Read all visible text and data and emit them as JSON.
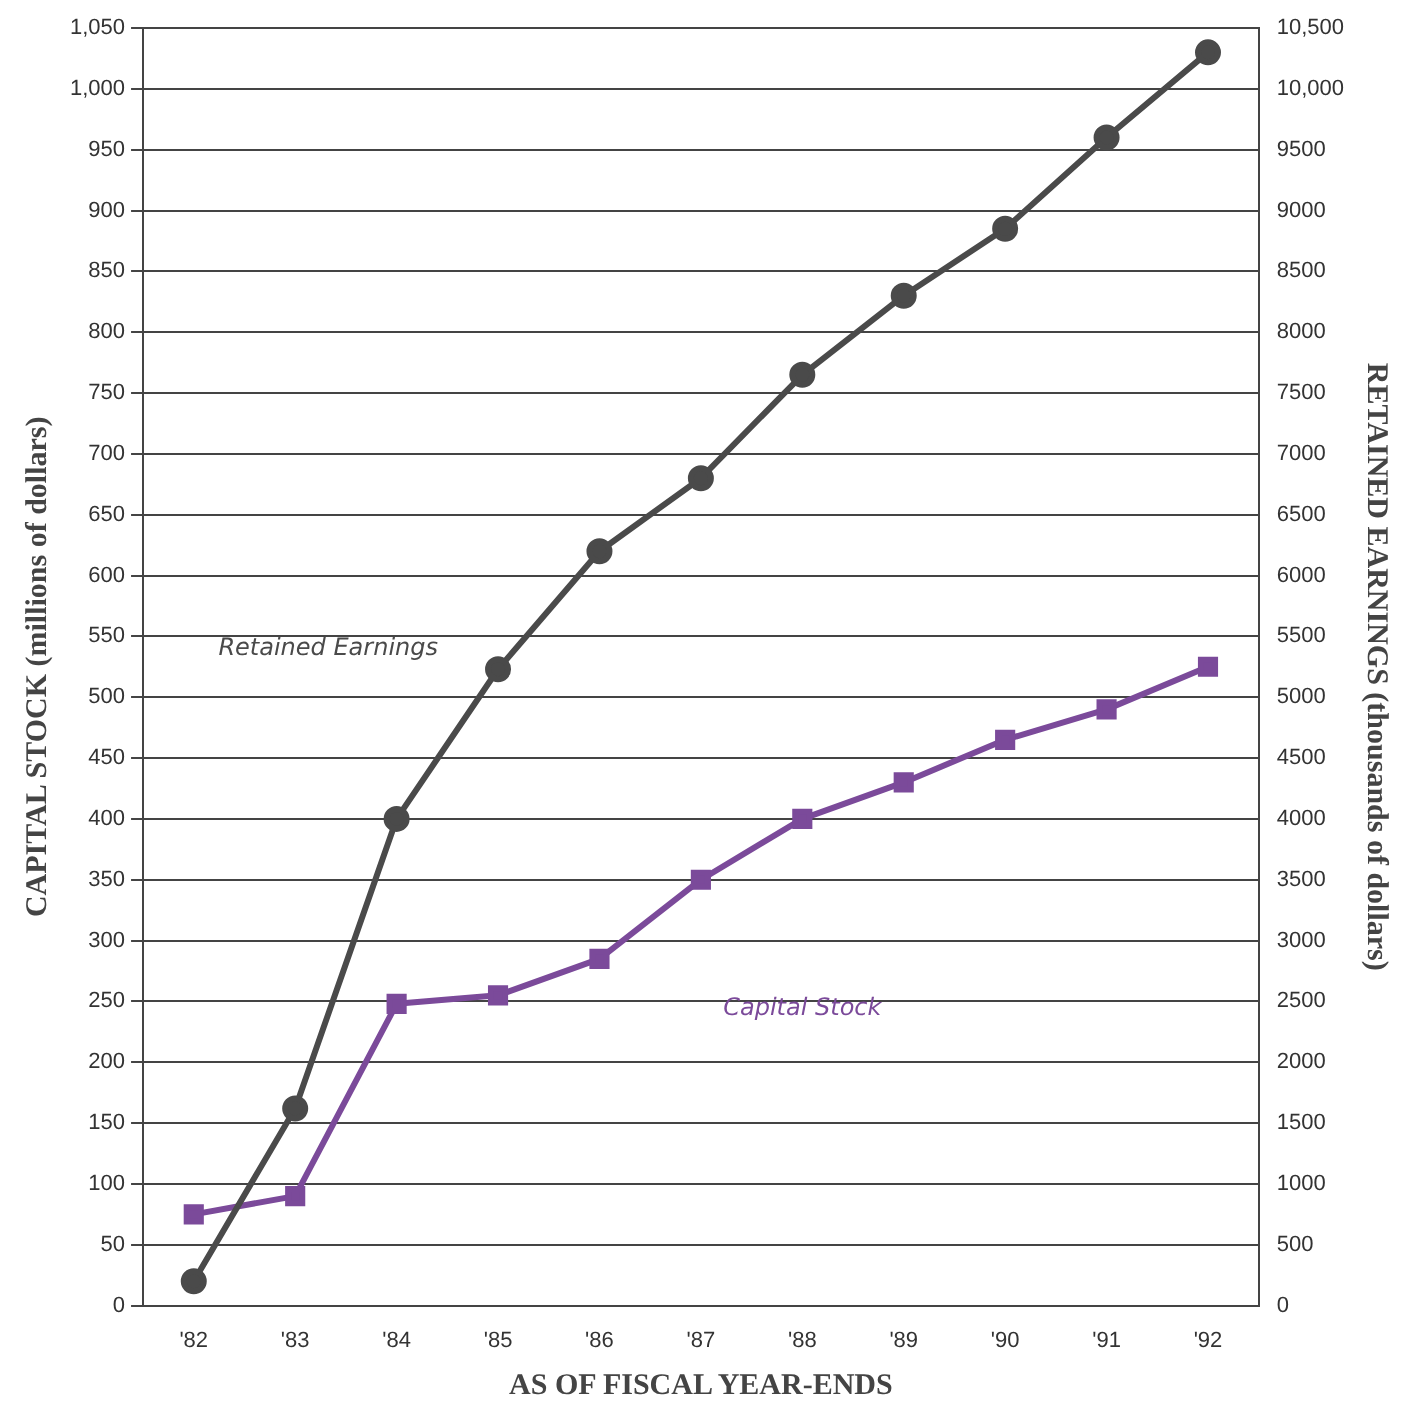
{
  "chart_data": {
    "type": "line",
    "xlabel": "AS OF FISCAL YEAR-ENDS",
    "ylabel": "CAPITAL STOCK (millions of dollars)",
    "y2label": "RETAINED EARNINGS (thousands of dollars)",
    "categories": [
      "'82",
      "'83",
      "'84",
      "'85",
      "'86",
      "'87",
      "'88",
      "'89",
      "'90",
      "'91",
      "'92"
    ],
    "series": [
      {
        "name": "Retained Earnings",
        "color": "#4a4a4a",
        "marker": "circle",
        "axis": "y2",
        "values": [
          200,
          1620,
          4000,
          5230,
          6200,
          6800,
          7650,
          8300,
          8850,
          9600,
          10300
        ]
      },
      {
        "name": "Capital Stock",
        "color": "#7b4a9a",
        "marker": "square",
        "values": [
          75,
          90,
          248,
          255,
          285,
          350,
          400,
          430,
          465,
          490,
          525
        ]
      }
    ],
    "ylim": [
      0,
      1050
    ],
    "yticks": [
      0,
      50,
      100,
      150,
      200,
      250,
      300,
      350,
      400,
      450,
      500,
      550,
      600,
      650,
      700,
      750,
      800,
      850,
      900,
      950,
      {
        "value": 1000,
        "label": "1,000"
      },
      {
        "value": 1050,
        "label": "1,050"
      }
    ],
    "y2lim": [
      0,
      10500
    ],
    "y2ticks": [
      0,
      500,
      1000,
      1500,
      2000,
      2500,
      3000,
      3500,
      4000,
      4500,
      5000,
      5500,
      6000,
      6500,
      7000,
      7500,
      8000,
      8500,
      9000,
      9500,
      {
        "value": 10000,
        "label": "10,000"
      },
      {
        "value": 10500,
        "label": "10,500"
      }
    ],
    "grid": "y",
    "legend": false,
    "line_style": "solid"
  }
}
